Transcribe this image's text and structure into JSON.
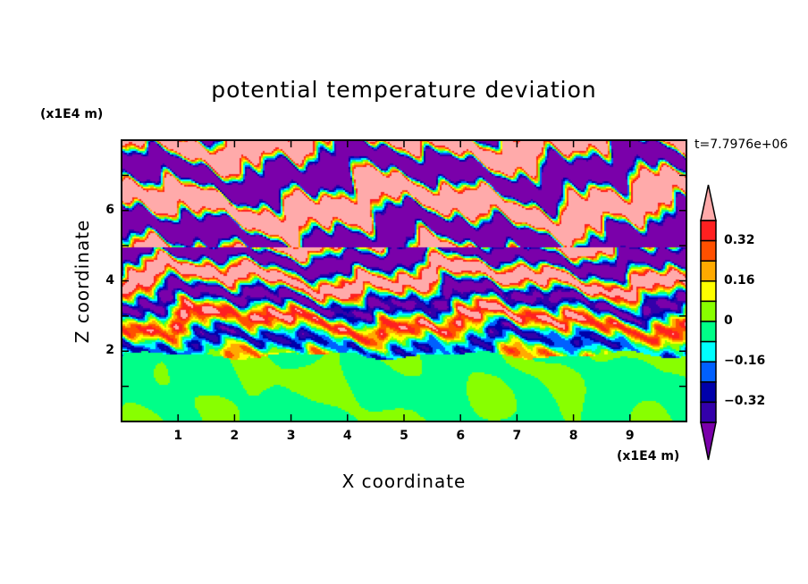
{
  "chart_data": {
    "type": "heatmap",
    "title": "potential temperature deviation",
    "xlabel": "X coordinate",
    "ylabel": "Z coordinate",
    "x_unit": "(x1E4 m)",
    "z_unit": "(x1E4 m)",
    "time_label": "t=7.7976e+06",
    "xlim": [
      0,
      10
    ],
    "ylim": [
      0,
      8
    ],
    "x_ticks": [
      1,
      2,
      3,
      4,
      5,
      6,
      7,
      8,
      9
    ],
    "y_ticks": [
      2,
      4,
      6
    ],
    "colorbar": {
      "levels": [
        0.4,
        0.32,
        0.24,
        0.16,
        0.08,
        0,
        -0.08,
        -0.16,
        -0.24,
        -0.32,
        -0.4
      ],
      "tick_labels": [
        "0.32",
        "0.16",
        "0",
        "−0.16",
        "−0.32"
      ],
      "tick_values": [
        0.32,
        0.16,
        0,
        -0.16,
        -0.32
      ],
      "over_color": "#ffaaaa",
      "under_color": "#7a00aa",
      "colors": [
        "#ff2020",
        "#ff5000",
        "#ffaa00",
        "#ffff00",
        "#88ff00",
        "#00ff88",
        "#00ffff",
        "#0060ff",
        "#0000aa",
        "#3300aa"
      ]
    }
  }
}
